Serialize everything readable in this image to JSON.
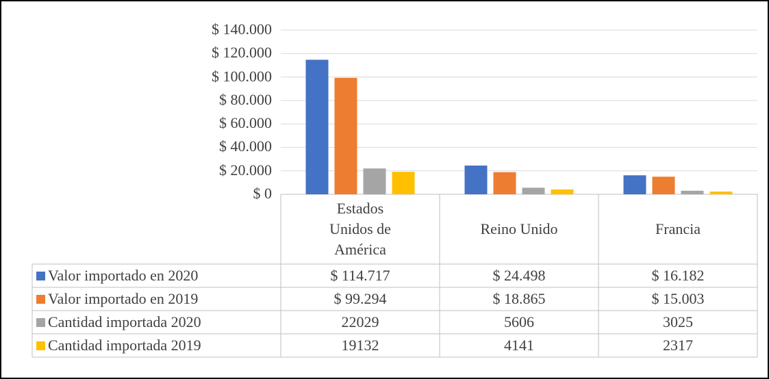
{
  "chart_data": {
    "type": "bar",
    "categories": [
      "Estados Unidos de América",
      "Reino Unido",
      "Francia"
    ],
    "series": [
      {
        "name": "Valor importado en 2020",
        "color": "#4472c4",
        "values": [
          114717,
          24498,
          16182
        ],
        "value_labels": [
          "$ 114.717",
          "$ 24.498",
          "$ 16.182"
        ]
      },
      {
        "name": "Valor importado en 2019",
        "color": "#ed7d31",
        "values": [
          99294,
          18865,
          15003
        ],
        "value_labels": [
          "$ 99.294",
          "$ 18.865",
          "$ 15.003"
        ]
      },
      {
        "name": "Cantidad importada 2020",
        "color": "#a5a5a5",
        "values": [
          22029,
          5606,
          3025
        ]
      },
      {
        "name": "Cantidad importada 2019",
        "color": "#ffc000",
        "values": [
          19132,
          4141,
          2317
        ]
      }
    ],
    "ylim": [
      0,
      140000
    ],
    "yticks": [
      {
        "value": 0,
        "label": "$ 0"
      },
      {
        "value": 20000,
        "label": "$ 20.000"
      },
      {
        "value": 40000,
        "label": "$ 40.000"
      },
      {
        "value": 60000,
        "label": "$ 60.000"
      },
      {
        "value": 80000,
        "label": "$ 80.000"
      },
      {
        "value": 100000,
        "label": "$ 100.000"
      },
      {
        "value": 120000,
        "label": "$ 120.000"
      },
      {
        "value": 140000,
        "label": "$ 140.000"
      }
    ],
    "grid": true,
    "data_table": true
  }
}
